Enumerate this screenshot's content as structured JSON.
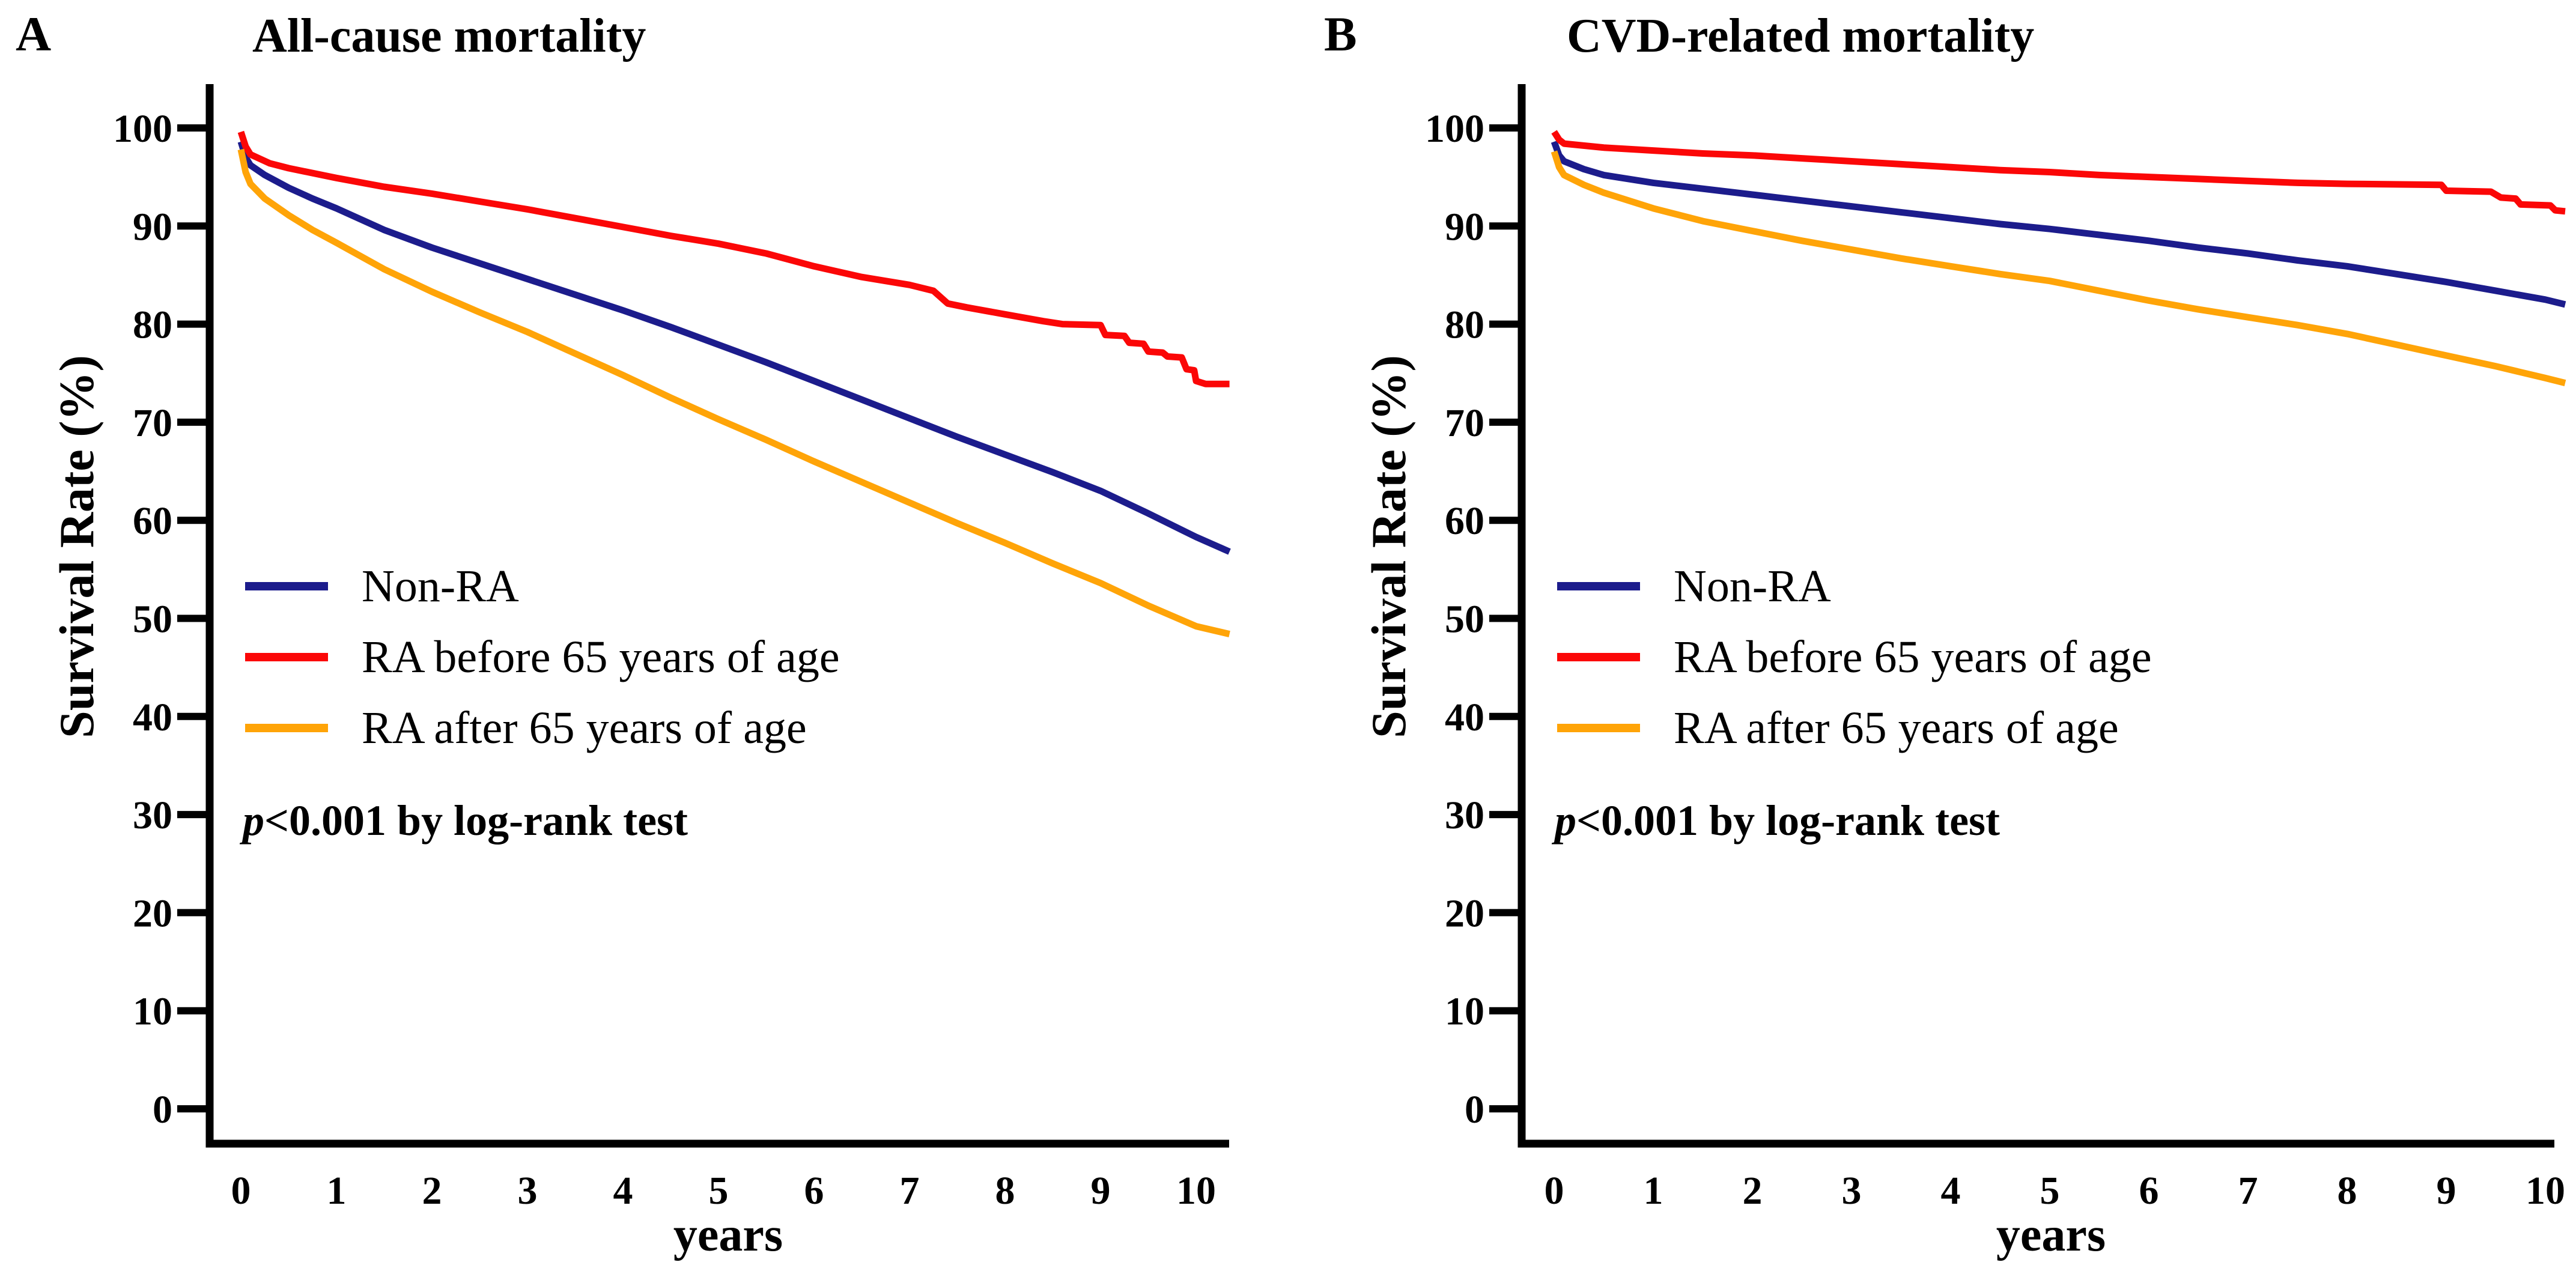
{
  "chart_data": [
    {
      "type": "line",
      "subtype": "kaplan-meier-step-curves",
      "panel_letter": "A",
      "title": "All-cause mortality",
      "xlabel": "years",
      "ylabel": "Survival Rate (%)",
      "annotation": {
        "italic": "p",
        "text": "<0.001 by log-rank test"
      },
      "xlim": [
        0,
        10.5
      ],
      "ylim": [
        0,
        100
      ],
      "xticks": [
        0,
        1,
        2,
        3,
        4,
        5,
        6,
        7,
        8,
        9,
        10
      ],
      "yticks": [
        0,
        10,
        20,
        30,
        40,
        50,
        60,
        70,
        80,
        90,
        100
      ],
      "grid": false,
      "legend_position": "inside-left-middle",
      "axis_color": "#000000",
      "series": [
        {
          "name": "Non-RA",
          "color": "#1c1c8c",
          "points": [
            [
              0,
              98.6
            ],
            [
              0.05,
              97.0
            ],
            [
              0.1,
              96.2
            ],
            [
              0.25,
              95.2
            ],
            [
              0.5,
              93.9
            ],
            [
              0.75,
              92.8
            ],
            [
              1,
              91.8
            ],
            [
              1.5,
              89.6
            ],
            [
              2,
              87.8
            ],
            [
              2.5,
              86.2
            ],
            [
              3,
              84.6
            ],
            [
              3.5,
              83.0
            ],
            [
              4,
              81.4
            ],
            [
              4.5,
              79.7
            ],
            [
              5,
              77.9
            ],
            [
              5.5,
              76.1
            ],
            [
              6,
              74.2
            ],
            [
              6.5,
              72.3
            ],
            [
              7,
              70.4
            ],
            [
              7.5,
              68.5
            ],
            [
              8,
              66.7
            ],
            [
              8.5,
              64.9
            ],
            [
              9,
              63.0
            ],
            [
              9.5,
              60.7
            ],
            [
              10,
              58.3
            ],
            [
              10.35,
              56.8
            ]
          ]
        },
        {
          "name": "RA before 65 years of age",
          "color": "#fb0707",
          "points": [
            [
              0,
              99.6
            ],
            [
              0.05,
              98.1
            ],
            [
              0.1,
              97.3
            ],
            [
              0.3,
              96.4
            ],
            [
              0.5,
              95.9
            ],
            [
              1,
              94.9
            ],
            [
              1.5,
              94.0
            ],
            [
              2,
              93.3
            ],
            [
              2.5,
              92.5
            ],
            [
              3,
              91.7
            ],
            [
              3.5,
              90.8
            ],
            [
              4,
              89.9
            ],
            [
              4.5,
              89.0
            ],
            [
              5,
              88.2
            ],
            [
              5.5,
              87.2
            ],
            [
              6,
              85.9
            ],
            [
              6.5,
              84.8
            ],
            [
              7,
              84.0
            ],
            [
              7.25,
              83.4
            ],
            [
              7.4,
              82.1
            ],
            [
              7.6,
              81.7
            ],
            [
              8,
              81.0
            ],
            [
              8.4,
              80.3
            ],
            [
              8.6,
              80.0
            ],
            [
              9.0,
              79.9
            ],
            [
              9.05,
              78.9
            ],
            [
              9.25,
              78.8
            ],
            [
              9.3,
              78.1
            ],
            [
              9.45,
              78.0
            ],
            [
              9.5,
              77.2
            ],
            [
              9.65,
              77.1
            ],
            [
              9.7,
              76.7
            ],
            [
              9.85,
              76.6
            ],
            [
              9.9,
              75.4
            ],
            [
              9.98,
              75.3
            ],
            [
              10.0,
              74.2
            ],
            [
              10.1,
              73.9
            ],
            [
              10.35,
              73.9
            ]
          ]
        },
        {
          "name": "RA after 65 years of age",
          "color": "#ffa408",
          "points": [
            [
              0,
              97.8
            ],
            [
              0.05,
              95.5
            ],
            [
              0.1,
              94.3
            ],
            [
              0.25,
              92.8
            ],
            [
              0.5,
              91.1
            ],
            [
              0.75,
              89.6
            ],
            [
              1,
              88.3
            ],
            [
              1.5,
              85.6
            ],
            [
              2,
              83.3
            ],
            [
              2.5,
              81.2
            ],
            [
              3,
              79.2
            ],
            [
              3.5,
              77.0
            ],
            [
              4,
              74.8
            ],
            [
              4.5,
              72.5
            ],
            [
              5,
              70.3
            ],
            [
              5.5,
              68.2
            ],
            [
              6,
              66.0
            ],
            [
              6.5,
              63.9
            ],
            [
              7,
              61.8
            ],
            [
              7.5,
              59.7
            ],
            [
              8,
              57.7
            ],
            [
              8.5,
              55.6
            ],
            [
              9,
              53.6
            ],
            [
              9.5,
              51.3
            ],
            [
              10,
              49.2
            ],
            [
              10.35,
              48.4
            ]
          ]
        }
      ]
    },
    {
      "type": "line",
      "subtype": "kaplan-meier-step-curves",
      "panel_letter": "B",
      "title": "CVD-related mortality",
      "xlabel": "years",
      "ylabel": "Survival Rate (%)",
      "annotation": {
        "italic": "p",
        "text": "<0.001 by log-rank test"
      },
      "xlim": [
        0,
        10.5
      ],
      "ylim": [
        0,
        100
      ],
      "xticks": [
        0,
        1,
        2,
        3,
        4,
        5,
        6,
        7,
        8,
        9,
        10
      ],
      "yticks": [
        0,
        10,
        20,
        30,
        40,
        50,
        60,
        70,
        80,
        90,
        100
      ],
      "grid": false,
      "legend_position": "inside-left-middle",
      "axis_color": "#000000",
      "series": [
        {
          "name": "Non-RA",
          "color": "#1c1c8c",
          "points": [
            [
              0,
              98.6
            ],
            [
              0.05,
              97.2
            ],
            [
              0.1,
              96.6
            ],
            [
              0.3,
              95.8
            ],
            [
              0.5,
              95.2
            ],
            [
              1,
              94.4
            ],
            [
              1.5,
              93.8
            ],
            [
              2,
              93.2
            ],
            [
              2.5,
              92.6
            ],
            [
              3,
              92.0
            ],
            [
              3.5,
              91.4
            ],
            [
              4,
              90.8
            ],
            [
              4.5,
              90.2
            ],
            [
              5,
              89.7
            ],
            [
              5.5,
              89.1
            ],
            [
              6,
              88.5
            ],
            [
              6.5,
              87.8
            ],
            [
              7,
              87.2
            ],
            [
              7.5,
              86.5
            ],
            [
              8,
              85.9
            ],
            [
              8.5,
              85.1
            ],
            [
              9,
              84.3
            ],
            [
              9.5,
              83.4
            ],
            [
              10,
              82.5
            ],
            [
              10.2,
              82.0
            ]
          ]
        },
        {
          "name": "RA before 65 years of age",
          "color": "#fb0707",
          "points": [
            [
              0,
              99.6
            ],
            [
              0.05,
              98.8
            ],
            [
              0.1,
              98.4
            ],
            [
              0.5,
              98.0
            ],
            [
              1,
              97.7
            ],
            [
              1.5,
              97.4
            ],
            [
              2,
              97.2
            ],
            [
              2.5,
              96.9
            ],
            [
              3,
              96.6
            ],
            [
              3.5,
              96.3
            ],
            [
              4,
              96.0
            ],
            [
              4.5,
              95.7
            ],
            [
              5,
              95.5
            ],
            [
              5.5,
              95.2
            ],
            [
              6,
              95.0
            ],
            [
              6.5,
              94.8
            ],
            [
              7,
              94.6
            ],
            [
              7.5,
              94.4
            ],
            [
              8,
              94.3
            ],
            [
              8.95,
              94.2
            ],
            [
              9.0,
              93.6
            ],
            [
              9.45,
              93.5
            ],
            [
              9.55,
              92.9
            ],
            [
              9.7,
              92.8
            ],
            [
              9.75,
              92.2
            ],
            [
              10.05,
              92.1
            ],
            [
              10.1,
              91.6
            ],
            [
              10.2,
              91.5
            ]
          ]
        },
        {
          "name": "RA after 65 years of age",
          "color": "#ffa408",
          "points": [
            [
              0,
              97.6
            ],
            [
              0.05,
              96.0
            ],
            [
              0.1,
              95.2
            ],
            [
              0.3,
              94.2
            ],
            [
              0.5,
              93.4
            ],
            [
              1,
              91.8
            ],
            [
              1.5,
              90.5
            ],
            [
              2,
              89.5
            ],
            [
              2.5,
              88.5
            ],
            [
              3,
              87.6
            ],
            [
              3.5,
              86.7
            ],
            [
              4,
              85.9
            ],
            [
              4.5,
              85.1
            ],
            [
              5,
              84.4
            ],
            [
              5.5,
              83.4
            ],
            [
              6,
              82.4
            ],
            [
              6.5,
              81.5
            ],
            [
              7,
              80.7
            ],
            [
              7.5,
              79.9
            ],
            [
              8,
              79.0
            ],
            [
              8.5,
              77.9
            ],
            [
              9,
              76.8
            ],
            [
              9.5,
              75.7
            ],
            [
              10,
              74.5
            ],
            [
              10.2,
              74.0
            ]
          ]
        }
      ]
    }
  ]
}
